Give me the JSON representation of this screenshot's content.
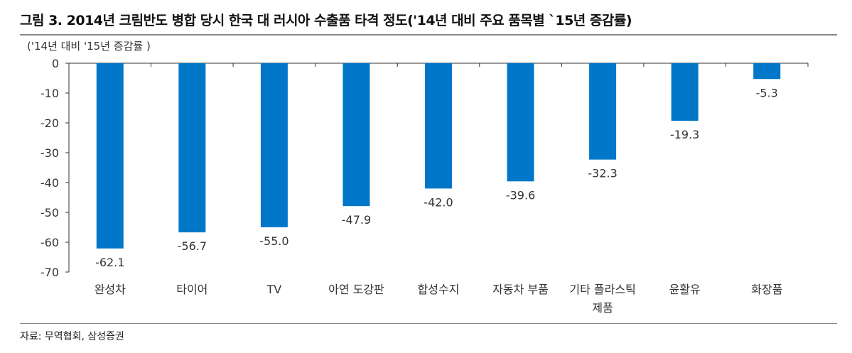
{
  "title": "그림 3. 2014년 크림반도 병합 당시 한국 대 러시아 수출품 타격 정도('14년 대비 주요 품목별 `15년 증감률)",
  "source": "자료: 무역협회, 삼성증권",
  "chart_data": {
    "type": "bar",
    "unit_label": "('14년 대비 '15년 증감률 )",
    "categories": [
      "완성차",
      "타이어",
      "TV",
      "아연 도강판",
      "합성수지",
      "자동차 부품",
      "기타 플라스틱 제품",
      "윤활유",
      "화장품"
    ],
    "values": [
      -62.1,
      -56.7,
      -55.0,
      -47.9,
      -42.0,
      -39.6,
      -32.3,
      -19.3,
      -5.3
    ],
    "data_labels": [
      "-62.1",
      "-56.7",
      "-55.0",
      "-47.9",
      "-42.0",
      "-39.6",
      "-32.3",
      "-19.3",
      "-5.3"
    ],
    "ylim": [
      -70,
      0
    ],
    "yticks": [
      0,
      -10,
      -20,
      -30,
      -40,
      -50,
      -60,
      -70
    ],
    "grid": false,
    "bar_color": "#0077c8"
  }
}
